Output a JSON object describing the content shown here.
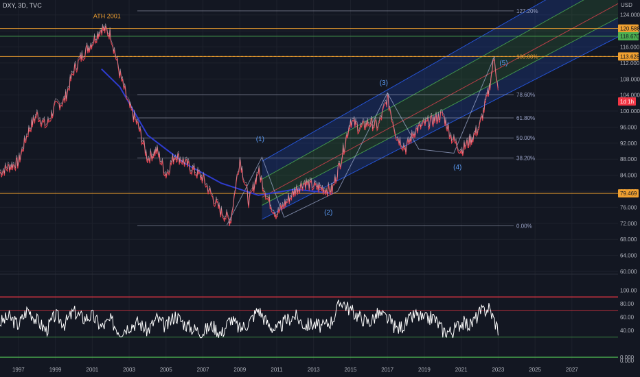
{
  "header": {
    "symbol": "DXY, 3D, TVC",
    "currency": "USD"
  },
  "colors": {
    "bg": "#131722",
    "grid": "#1e222d",
    "price_up": "#d9c9d6",
    "price_down": "#e0424f",
    "ma": "#2e3ccf",
    "fib": "#5b9cf6",
    "fib_line": "#c9d0e6",
    "orange": "#f0a030",
    "green": "#4caf50",
    "red": "#f23645",
    "channel": "#2962ff",
    "white": "#ffffff"
  },
  "chart_data": [
    {
      "type": "line",
      "title": "",
      "xlim": [
        1996.0,
        2029.5
      ],
      "ylim": [
        60.0,
        126.0
      ],
      "y_ticks": [
        "124.000",
        "120.000",
        "116.000",
        "112.000",
        "108.000",
        "104.000",
        "100.000",
        "96.000",
        "92.000",
        "88.000",
        "84.000",
        "80.000",
        "76.000",
        "72.000",
        "68.000",
        "64.000",
        "60.000"
      ],
      "x_ticks": [
        "1997",
        "1999",
        "2001",
        "2003",
        "2005",
        "2007",
        "2009",
        "2011",
        "2013",
        "2015",
        "2017",
        "2019",
        "2021",
        "2023",
        "2025",
        "2027"
      ],
      "series": [
        {
          "name": "DXY",
          "x": [
            1996.0,
            1996.5,
            1997.0,
            1997.5,
            1998.0,
            1998.5,
            1999.0,
            1999.5,
            2000.0,
            2000.5,
            2001.0,
            2001.5,
            2002.0,
            2002.5,
            2003.0,
            2003.5,
            2004.0,
            2004.5,
            2005.0,
            2005.5,
            2006.0,
            2006.5,
            2007.0,
            2007.5,
            2008.0,
            2008.5,
            2009.0,
            2009.5,
            2010.0,
            2010.5,
            2011.0,
            2011.5,
            2012.0,
            2012.5,
            2013.0,
            2013.5,
            2014.0,
            2014.5,
            2015.0,
            2015.5,
            2016.0,
            2016.5,
            2017.0,
            2017.5,
            2018.0,
            2018.5,
            2019.0,
            2019.5,
            2020.0,
            2020.5,
            2021.0,
            2021.5,
            2022.0,
            2022.5,
            2022.8,
            2023.0
          ],
          "y": [
            84.5,
            86.0,
            87.0,
            94.5,
            99.0,
            96.0,
            101.0,
            102.5,
            110.0,
            114.0,
            117.0,
            120.5,
            119.0,
            109.0,
            101.0,
            96.0,
            88.0,
            90.0,
            84.0,
            89.0,
            87.0,
            85.0,
            83.0,
            78.5,
            74.5,
            72.5,
            88.0,
            77.0,
            85.0,
            78.0,
            74.0,
            77.0,
            80.0,
            82.0,
            81.0,
            80.5,
            80.0,
            88.0,
            97.5,
            95.5,
            97.0,
            96.0,
            103.0,
            93.5,
            90.5,
            95.0,
            96.5,
            97.5,
            99.0,
            93.0,
            90.0,
            92.5,
            96.0,
            105.0,
            113.6,
            104.5
          ]
        },
        {
          "name": "",
          "x": [
            2001.5,
            2002.5,
            2004.0,
            2006.0,
            2008.0,
            2010.0,
            2012.0,
            2014.0
          ],
          "y": [
            110.5,
            106.0,
            94.0,
            87.0,
            82.0,
            79.0,
            80.5,
            79.5
          ]
        }
      ],
      "fib_levels": [
        {
          "label": "127.20%",
          "value": 125.0
        },
        {
          "label": "100.00%",
          "value": 113.628
        },
        {
          "label": "78.60%",
          "value": 104.1
        },
        {
          "label": "61.80%",
          "value": 98.3
        },
        {
          "label": "50.00%",
          "value": 93.3
        },
        {
          "label": "38.20%",
          "value": 88.3
        },
        {
          "label": "0.00%",
          "value": 71.4
        }
      ],
      "price_labels": [
        {
          "label": "120.588",
          "value": 120.588,
          "color": "#f0a030"
        },
        {
          "label": "118.670",
          "value": 118.67,
          "color": "#4caf50"
        },
        {
          "label": "113.628",
          "value": 113.628,
          "color": "#f0a030"
        },
        {
          "label": "79.469",
          "value": 79.469,
          "color": "#f0a030"
        }
      ],
      "countdown": "1d 1h",
      "annotations": [
        {
          "text": "ATH 2001",
          "x": 2001.8,
          "y": 123.2,
          "color": "#f0a030"
        },
        {
          "text": "(1)",
          "x": 2010.1,
          "y": 92.5,
          "color": "#5b9cf6"
        },
        {
          "text": "(2)",
          "x": 2013.8,
          "y": 74.2,
          "color": "#5b9cf6"
        },
        {
          "text": "(3)",
          "x": 2016.8,
          "y": 106.5,
          "color": "#5b9cf6"
        },
        {
          "text": "(4)",
          "x": 2020.8,
          "y": 85.5,
          "color": "#5b9cf6"
        },
        {
          "text": "(5)",
          "x": 2023.3,
          "y": 111.5,
          "color": "#5b9cf6"
        }
      ],
      "waves": {
        "x": [
          2008.3,
          2010.2,
          2011.4,
          2014.3,
          2017.0,
          2018.7,
          2020.6,
          2022.8
        ],
        "y": [
          71.6,
          88.5,
          73.5,
          80.0,
          104.5,
          90.5,
          89.5,
          113.6
        ]
      },
      "channel": {
        "x": [
          2010.2,
          2029.5
        ],
        "upper": [
          87.5,
          138.0
        ],
        "mid_upper": [
          83.0,
          132.5
        ],
        "mid": [
          78.5,
          126.8
        ],
        "mid_lower": [
          76.5,
          123.3
        ],
        "lower": [
          73.0,
          118.5
        ]
      },
      "grid": true
    },
    {
      "type": "line",
      "title": "",
      "ylim": [
        -5,
        120
      ],
      "y_ticks": [
        "100.00",
        "80.00",
        "60.00",
        "40.00",
        "0.000",
        "0.000"
      ],
      "tick_values": [
        100,
        80,
        60,
        40,
        0,
        -5
      ],
      "levels": [
        {
          "value": 90,
          "color": "#f23645"
        },
        {
          "value": 70,
          "color": "#f23645"
        },
        {
          "value": 30,
          "color": "#4caf50"
        },
        {
          "value": 0,
          "color": "#4caf50"
        }
      ],
      "series": [
        {
          "name": "",
          "x": [
            1996.0,
            1996.5,
            1997.0,
            1997.5,
            1998.0,
            1998.5,
            1999.0,
            1999.5,
            2000.0,
            2000.5,
            2001.0,
            2001.5,
            2002.0,
            2002.5,
            2003.0,
            2003.5,
            2004.0,
            2004.5,
            2005.0,
            2005.5,
            2006.0,
            2006.5,
            2007.0,
            2007.5,
            2008.0,
            2008.5,
            2009.0,
            2009.5,
            2010.0,
            2010.5,
            2011.0,
            2011.5,
            2012.0,
            2012.5,
            2013.0,
            2013.5,
            2014.0,
            2014.5,
            2015.0,
            2015.5,
            2016.0,
            2016.5,
            2017.0,
            2017.5,
            2018.0,
            2018.5,
            2019.0,
            2019.5,
            2020.0,
            2020.5,
            2021.0,
            2021.5,
            2022.0,
            2022.5,
            2023.0
          ],
          "y": [
            52,
            60,
            48,
            72,
            55,
            40,
            63,
            50,
            68,
            58,
            62,
            45,
            55,
            38,
            47,
            52,
            40,
            58,
            45,
            63,
            50,
            42,
            38,
            48,
            35,
            58,
            42,
            52,
            72,
            50,
            40,
            55,
            62,
            48,
            50,
            45,
            55,
            85,
            70,
            60,
            52,
            65,
            58,
            42,
            50,
            64,
            56,
            60,
            40,
            38,
            52,
            48,
            66,
            74,
            42
          ]
        }
      ]
    }
  ]
}
